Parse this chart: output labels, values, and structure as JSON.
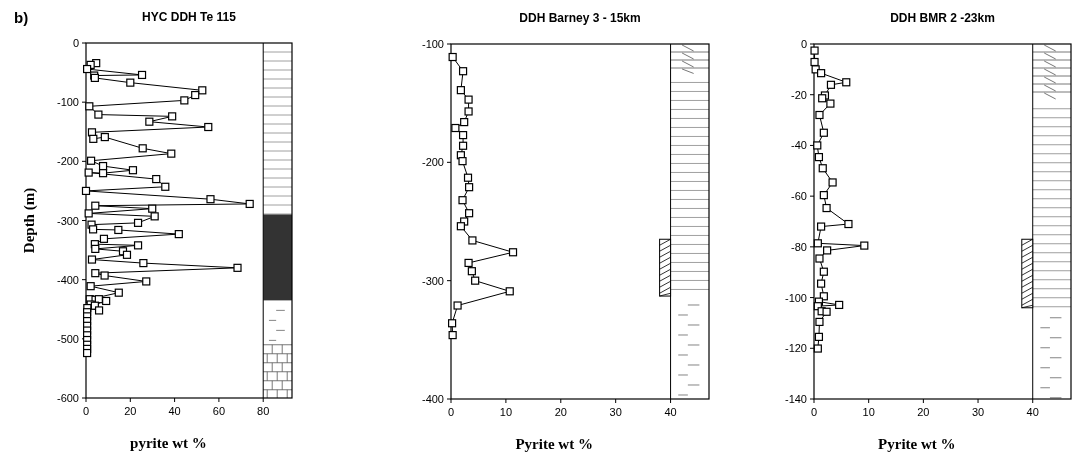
{
  "chart_data": [
    {
      "type": "line",
      "title": "HYC DDH Te 115",
      "xlabel": "pyrite wt %",
      "ylabel": "Depth (m)",
      "annotations": [
        "b)"
      ],
      "xlim": [
        0,
        93
      ],
      "xticks": [
        0,
        20,
        40,
        60,
        80
      ],
      "ylim": [
        -600,
        0
      ],
      "yticks": [
        -600,
        -500,
        -400,
        -300,
        -200,
        -100,
        0
      ],
      "marker": "square",
      "series": [
        {
          "color": "#000000",
          "x": [
            4.6,
            2.1,
            0.5,
            25.3,
            3.7,
            4.0,
            20,
            52.5,
            49.3,
            44.4,
            1.5,
            5.6,
            38.9,
            28.6,
            55.2,
            2.7,
            3.3,
            8.5,
            25.6,
            38.5,
            2.3,
            7.7,
            21.2,
            7.7,
            1.2,
            31.7,
            35.8,
            0,
            56.2,
            73.9,
            4.2,
            29.9,
            1.2,
            31,
            23.5,
            2.5,
            3.2,
            14.6,
            41.9,
            8.1,
            4,
            23.5,
            4.2,
            16.7,
            18.5,
            2.7,
            25.9,
            68.4,
            4.2,
            8.4,
            27.2,
            2.1,
            14.8,
            1.7,
            4.3,
            5.8,
            9.1,
            2.1,
            4,
            5.9,
            0.6,
            0.5,
            0.5,
            0.5,
            0.5,
            0.5,
            0.5,
            0.5,
            0.5,
            0.5,
            0.5
          ],
          "values": [
            -34,
            -37,
            -44,
            -54,
            -55,
            -59,
            -67,
            -80,
            -88,
            -97,
            -107,
            -121,
            -124,
            -133,
            -142,
            -151,
            -162,
            -159,
            -178,
            -187,
            -199,
            -208,
            -215,
            -220,
            -219,
            -230,
            -243,
            -250,
            -264,
            -272,
            -275,
            -280,
            -288,
            -293,
            -304,
            -307,
            -315,
            -316,
            -323,
            -331,
            -340,
            -342,
            -348,
            -352,
            -358,
            -366,
            -372,
            -380,
            -389,
            -393,
            -403,
            -411,
            -422,
            -433,
            -434,
            -433,
            -436,
            -442,
            -444,
            -452,
            -448,
            -455,
            -462,
            -470,
            -478,
            -486,
            -494,
            -502,
            -510,
            -517,
            -524
          ]
        }
      ]
    },
    {
      "type": "line",
      "title": "DDH Barney 3 - 15km",
      "xlabel": "Pyrite wt %",
      "xlim": [
        0,
        47
      ],
      "xticks": [
        0,
        10,
        20,
        30,
        40
      ],
      "ylim": [
        -400,
        -100
      ],
      "yticks": [
        -400,
        -300,
        -200,
        -100
      ],
      "marker": "square",
      "series": [
        {
          "color": "#000000",
          "x": [
            0.3,
            2.2,
            1.8,
            3.2,
            3.2,
            2.4,
            0.8,
            2.2,
            2.2,
            1.8,
            2.1,
            3.1,
            3.3,
            2.1,
            3.3,
            2.4,
            1.8,
            3.9,
            11.3,
            3.2,
            3.8,
            4.4,
            10.7,
            1.2,
            0.2,
            0.3
          ],
          "values": [
            -111,
            -123,
            -139,
            -147,
            -157,
            -166,
            -171,
            -177,
            -186,
            -194,
            -199,
            -213,
            -221,
            -232,
            -243,
            -250,
            -254,
            -266,
            -276,
            -285,
            -292,
            -300,
            -309,
            -321,
            -336,
            -346
          ]
        }
      ]
    },
    {
      "type": "line",
      "title": "DDH BMR 2 -23km",
      "xlabel": "Pyrite wt %",
      "xlim": [
        0,
        47
      ],
      "xticks": [
        0,
        10,
        20,
        30,
        40
      ],
      "ylim": [
        -140,
        0
      ],
      "yticks": [
        -140,
        -120,
        -100,
        -80,
        -60,
        -40,
        -20,
        0
      ],
      "marker": "square",
      "series": [
        {
          "color": "#000000",
          "x": [
            0.1,
            0.1,
            0.3,
            1.3,
            5.9,
            3.1,
            2.0,
            1.5,
            3.0,
            1.0,
            1.8,
            0.6,
            0.9,
            1.6,
            3.4,
            1.8,
            2.3,
            6.3,
            1.3,
            0.7,
            9.2,
            2.4,
            1.0,
            1.8,
            1.3,
            1.8,
            0.9,
            4.6,
            0.7,
            1.4,
            2.3,
            1.0,
            0.9,
            0.7
          ],
          "values": [
            -2.6,
            -7.1,
            -10,
            -11.5,
            -15.1,
            -16.1,
            -20.3,
            -21.4,
            -23.5,
            -28,
            -35,
            -40,
            -44.6,
            -49,
            -54.6,
            -59.6,
            -64.7,
            -71,
            -72,
            -78.6,
            -79.5,
            -81.4,
            -84.6,
            -89.8,
            -94.5,
            -99.5,
            -101.6,
            -102.9,
            -103.4,
            -105.4,
            -105.6,
            -109.6,
            -115.5,
            -120.1
          ]
        }
      ]
    }
  ]
}
